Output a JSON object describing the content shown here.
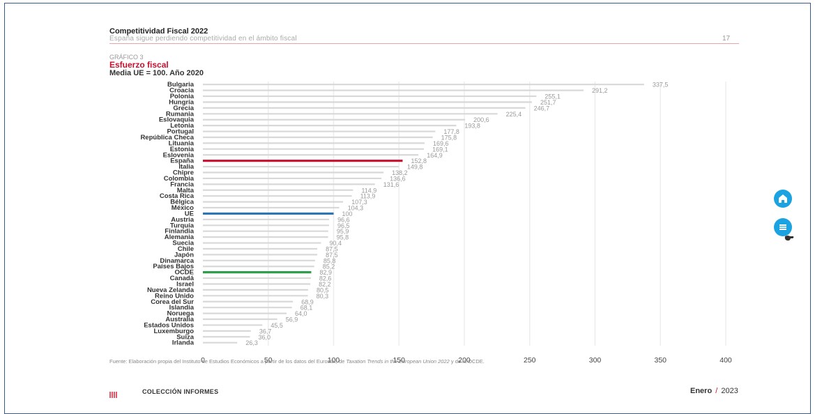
{
  "header": {
    "title": "Competitividad Fiscal 2022",
    "subtitle": "España sigue perdiendo competitividad en el ámbito fiscal",
    "page_number": "17"
  },
  "figure": {
    "label": "GRÁFICO 3",
    "title": "Esfuerzo fiscal",
    "subtitle": "Media UE = 100. Año 2020"
  },
  "chart_data": {
    "type": "bar",
    "orientation": "horizontal",
    "title": "Esfuerzo fiscal",
    "subtitle": "Media UE = 100. Año 2020",
    "xlim": [
      0,
      400
    ],
    "xticks": [
      0,
      50,
      100,
      150,
      200,
      250,
      300,
      350,
      400
    ],
    "grid": true,
    "categories": [
      "Bulgaria",
      "Croacia",
      "Polonia",
      "Hungría",
      "Grecia",
      "Rumania",
      "Eslovaquia",
      "Letonia",
      "Portugal",
      "República Checa",
      "Lituania",
      "Estonia",
      "Eslovenia",
      "España",
      "Italia",
      "Chipre",
      "Colombia",
      "Francia",
      "Malta",
      "Costa Rica",
      "Bélgica",
      "México",
      "UE",
      "Austria",
      "Turquía",
      "Finlandia",
      "Alemania",
      "Suecia",
      "Chile",
      "Japón",
      "Dinamarca",
      "Países Bajos",
      "OCDE",
      "Canadá",
      "Israel",
      "Nueva Zelanda",
      "Reino Unido",
      "Corea del Sur",
      "Islandia",
      "Noruega",
      "Australia",
      "Estados Unidos",
      "Luxemburgo",
      "Suiza",
      "Irlanda"
    ],
    "values": [
      337.5,
      291.2,
      255.1,
      251.7,
      246.7,
      225.4,
      200.6,
      193.8,
      177.8,
      175.8,
      169.6,
      169.1,
      164.9,
      152.8,
      149.8,
      138.2,
      136.6,
      131.6,
      114.9,
      113.9,
      107.3,
      104.3,
      100,
      96.6,
      96.5,
      95.9,
      95.8,
      90.4,
      87.5,
      87.5,
      85.8,
      85.2,
      82.9,
      82.6,
      82.2,
      80.5,
      80.3,
      68.9,
      68.1,
      64.0,
      56.9,
      45.5,
      36.7,
      36.0,
      26.3
    ],
    "value_labels": [
      "337,5",
      "291,2",
      "255,1",
      "251,7",
      "246,7",
      "225,4",
      "200,6",
      "193,8",
      "177,8",
      "175,8",
      "169,6",
      "169,1",
      "164,9",
      "152,8",
      "149,8",
      "138,2",
      "136,6",
      "131,6",
      "114,9",
      "113,9",
      "107,3",
      "104,3",
      "100",
      "96,6",
      "96,5",
      "95,9",
      "95,8",
      "90,4",
      "87,5",
      "87,5",
      "85,8",
      "85,2",
      "82,9",
      "82,6",
      "82,2",
      "80,5",
      "80,3",
      "68,9",
      "68,1",
      "64,0",
      "56,9",
      "45,5",
      "36,7",
      "36,0",
      "26,3"
    ],
    "highlights": {
      "España": "#c8102e",
      "UE": "#2e75b6",
      "OCDE": "#2e9e4a"
    },
    "default_bar_color": "#d8d8d8"
  },
  "footnote": {
    "text": "Fuente: Elaboración propia del Instituto de Estudios Económicos a partir de los datos del Eurostat, de ",
    "italic": "Taxation Trends in the European Union 2022",
    "text_end": " y de la OCDE."
  },
  "footer": {
    "collection": "COLECCIÓN INFORMES",
    "month": "Enero",
    "separator": "/",
    "year": "2023"
  },
  "side_buttons": {
    "icons": [
      "home-icon",
      "menu-icon"
    ]
  }
}
